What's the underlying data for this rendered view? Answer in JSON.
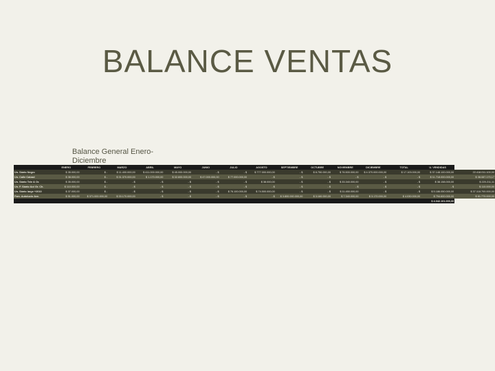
{
  "title": "BALANCE VENTAS",
  "subtitle_l1": "Balance General Enero-",
  "subtitle_l2": "Diciembre",
  "colors": {
    "page_bg": "#f2f1ea",
    "title_color": "#5a5a44",
    "header_bg": "#1a1a1a",
    "row_dark_bg": "#3a3a2d",
    "row_light_bg": "#5a5a44",
    "cell_text": "#e8e6da"
  },
  "table": {
    "columns": [
      "",
      "ENERO",
      "FEBRERO",
      "MARZO",
      "ABRIL",
      "MAYO",
      "JUNIO",
      "JULIO",
      "AGOSTO",
      "SEPTIEMBRE",
      "OCTUBRE",
      "NOVIEMBRE",
      "DICIEMBRE",
      "TOTAL",
      "U. VENDIDAS"
    ],
    "rows": [
      {
        "label": "Un. Sánto Negro",
        "cells": [
          "$ 35.000,00",
          "$ -",
          "$ 11.400.000,00",
          "$ 411.000.000,00",
          "$ 45.000.000,00",
          "- $",
          "- $",
          "$ 777.000.000,00",
          "- $",
          "$ 8.750.000,00",
          "$ 76.500.000,00",
          "$ 4.370.000.000,00",
          "$ 17.103.000,00",
          "$ 37.148.100.000,00",
          "22.418.011.100,00"
        ]
      },
      {
        "label": "Un. Calle Calzad",
        "cells": [
          "$ 38.000,00",
          "$ -",
          "$ 31.370.000,00",
          "$ 1.170.000,00",
          "$ 32.600.000,00",
          "$ 47.000.000,00",
          "$ 77.000.000,00",
          "- $",
          "- $",
          "- $",
          "- $",
          "- $",
          "- $",
          "$ 11.718.000.000,00",
          "$ 38.087.170,17"
        ]
      },
      {
        "label": "Un. Sánto Tele & Or.",
        "cells": [
          "$ 35.000,00",
          "$ -",
          "- $",
          "- $",
          "- $",
          "- $",
          "- $",
          "$ 38.000,00",
          "- $",
          "- $",
          "$ 33.340.000,00",
          "- $",
          "- $",
          "$ 38.158.000,00",
          "$ 220.211,11"
        ]
      },
      {
        "label": "Un. F. Sánto &o/ Gr. Ch.",
        "cells": [
          "$ 110.000,00",
          "$ -",
          "- $",
          "- $",
          "- $",
          "- $",
          "- $",
          "- $",
          "- $",
          "- $",
          "- $",
          "- $",
          "- $",
          "- $",
          "$ 110.000,00"
        ]
      },
      {
        "label": "Un. Sánto large +2010",
        "cells": [
          "$ 37.000,00",
          "$ -",
          "- $",
          "- $",
          "- $",
          "- $",
          "$ 76.100.000,00",
          "$ 74.500.000,00",
          "- $",
          "- $",
          "$ 11.450.000,00",
          "- $",
          "- $",
          "$ 5.186.050.000,00",
          "$ 37.118.700.000,00"
        ]
      },
      {
        "label": "Fam. Autolucio Ave.",
        "cells": [
          "$ 51.000,00",
          "$ 371.000.000,00",
          "$ 33.170.000,00",
          "- $",
          "- $",
          "- $",
          "- $",
          "- $",
          "$ 3.800.000.000,00",
          "$ 3.160.000,00",
          "$ 7.340.000,00",
          "$ 3.170.000,00",
          "$ 4.030.000,00",
          "$ 794.600.000,00",
          "$ 81.770.000,00"
        ]
      }
    ],
    "footer": [
      "",
      "",
      "",
      "",
      "",
      "",
      "",
      "",
      "",
      "",
      "",
      "",
      "",
      "",
      "$ 4.042.101.000,00"
    ]
  }
}
